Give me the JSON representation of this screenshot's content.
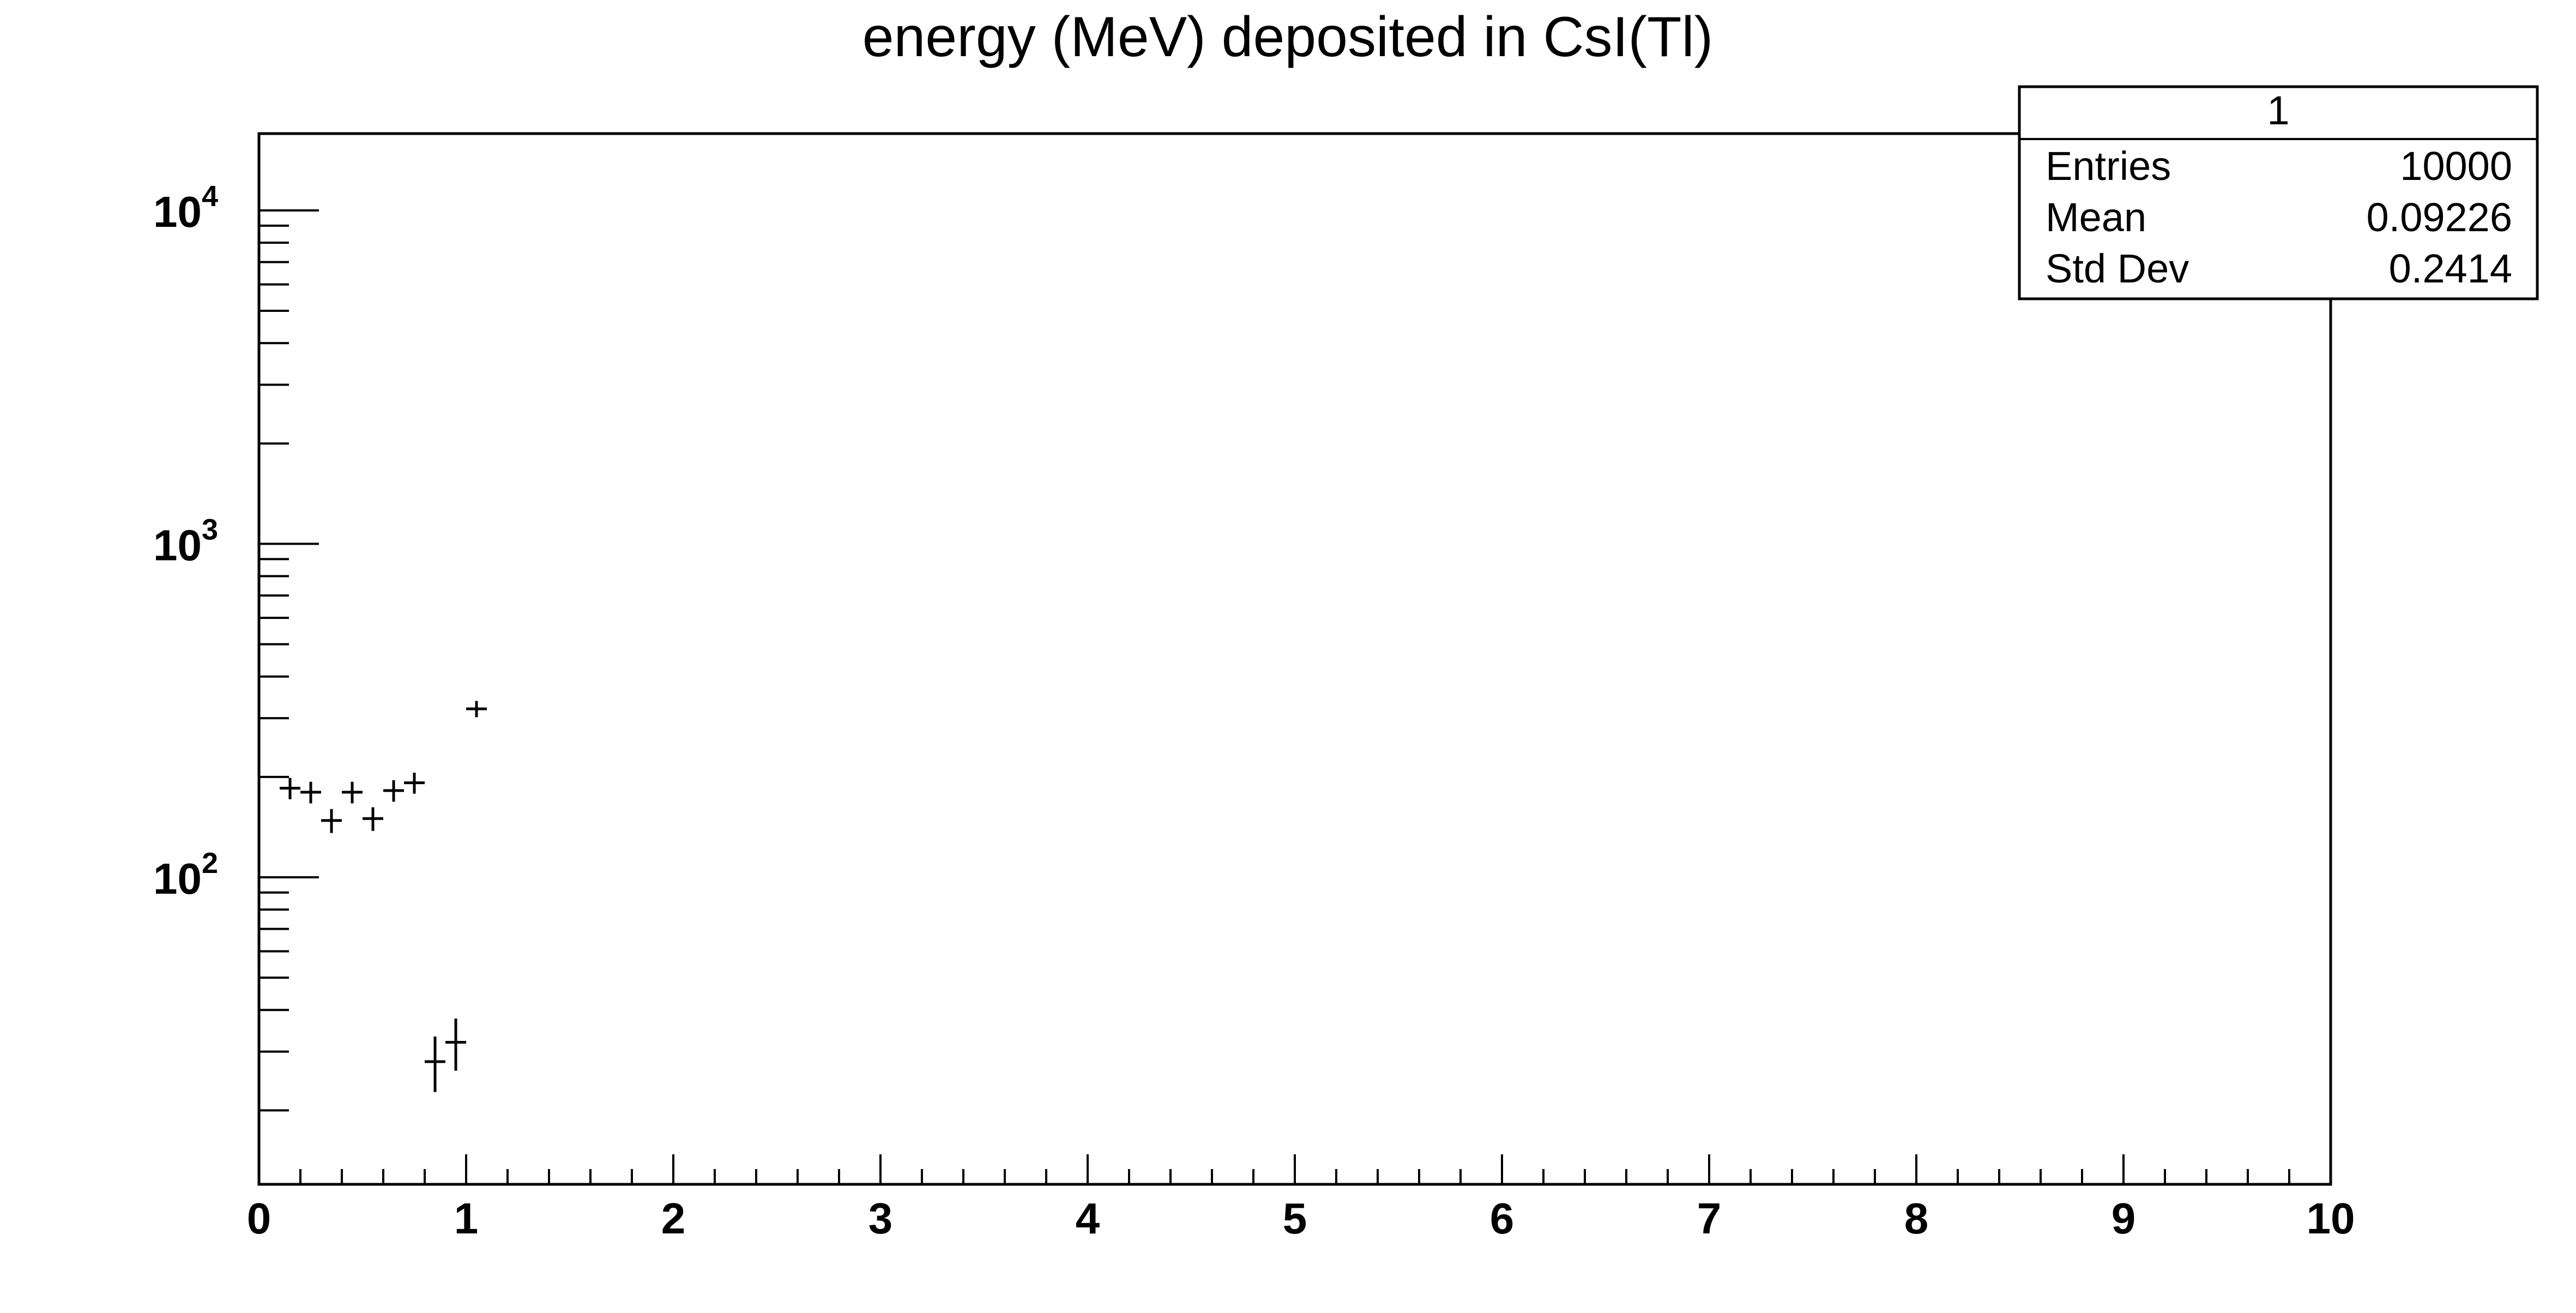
{
  "chart_data": {
    "type": "scatter",
    "title": "energy (MeV) deposited in CsI(Tl)",
    "xlabel": "",
    "ylabel": "",
    "xlim": [
      0,
      10
    ],
    "ylim": [
      12,
      17000
    ],
    "yscale": "log",
    "grid": false,
    "x_ticks": [
      "0",
      "1",
      "2",
      "3",
      "4",
      "5",
      "6",
      "7",
      "8",
      "9",
      "10"
    ],
    "y_ticks": [
      {
        "base": "10",
        "exp": "2",
        "value": 100
      },
      {
        "base": "10",
        "exp": "3",
        "value": 1000
      },
      {
        "base": "10",
        "exp": "4",
        "value": 10000
      }
    ],
    "series": [
      {
        "x": [
          0.15,
          0.25,
          0.35,
          0.45,
          0.55,
          0.65,
          0.75,
          0.85,
          0.95,
          1.05
        ],
        "y": [
          185,
          180,
          148,
          180,
          150,
          182,
          192,
          28,
          32,
          320
        ],
        "y_err": [
          13.6,
          13.4,
          12.2,
          13.4,
          12.2,
          13.5,
          13.9,
          5.3,
          5.7,
          17.9
        ],
        "x_err": 0.05
      }
    ],
    "stats_box": {
      "title": "1",
      "rows": [
        {
          "label": "Entries",
          "value": "10000"
        },
        {
          "label": "Mean",
          "value": "0.09226"
        },
        {
          "label": "Std Dev",
          "value": "0.2414"
        }
      ]
    }
  }
}
